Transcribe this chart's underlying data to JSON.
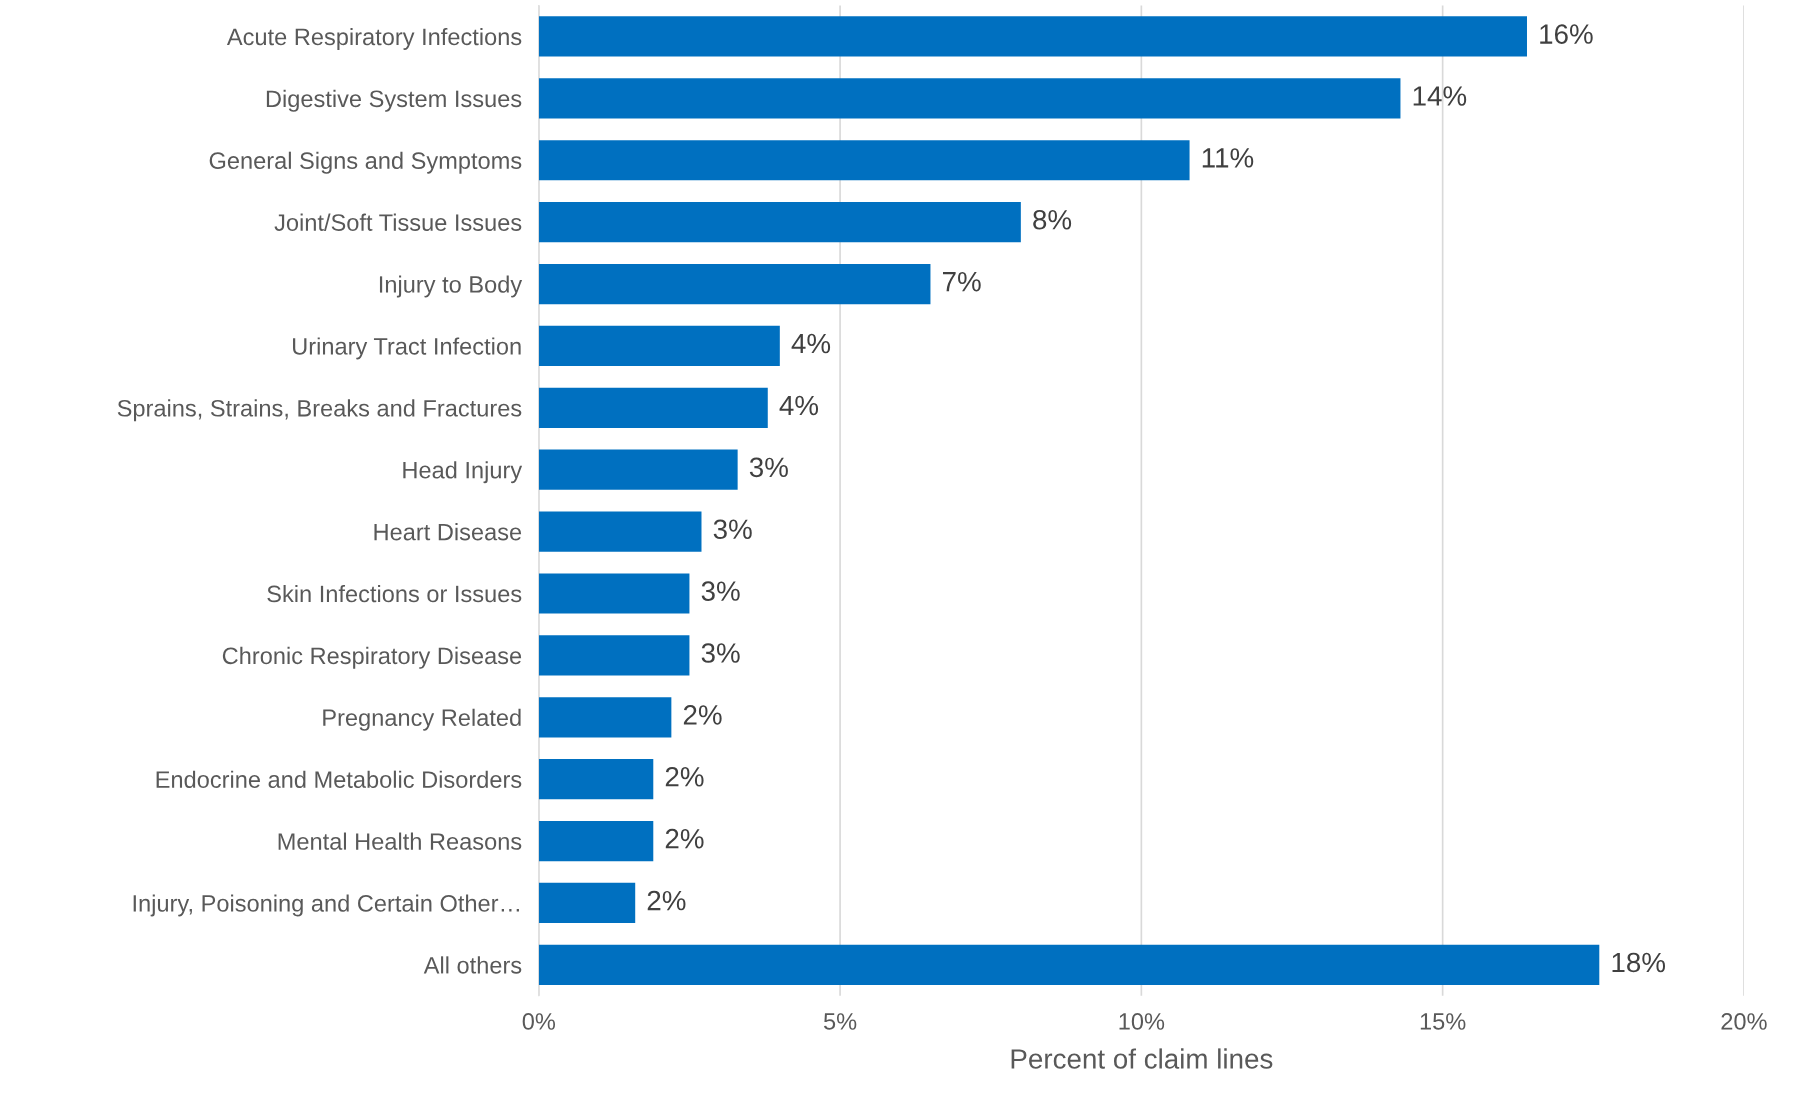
{
  "chart_data": {
    "type": "bar",
    "orientation": "horizontal",
    "xlabel": "Percent of claim lines",
    "categories": [
      "Acute Respiratory Infections",
      "Digestive System Issues",
      "General Signs and Symptoms",
      "Joint/Soft Tissue Issues",
      "Injury to Body",
      "Urinary Tract Infection",
      "Sprains, Strains, Breaks and Fractures",
      "Head Injury",
      "Heart Disease",
      "Skin Infections or Issues",
      "Chronic Respiratory Disease",
      "Pregnancy Related",
      "Endocrine and Metabolic Disorders",
      "Mental Health Reasons",
      "Injury, Poisoning and Certain Other…",
      "All others"
    ],
    "values": [
      16.4,
      14.3,
      10.8,
      8.0,
      6.5,
      4.0,
      3.8,
      3.3,
      2.7,
      2.5,
      2.5,
      2.2,
      1.9,
      1.9,
      1.6,
      17.6
    ],
    "value_labels": [
      "16%",
      "14%",
      "11%",
      "8%",
      "7%",
      "4%",
      "4%",
      "3%",
      "3%",
      "3%",
      "3%",
      "2%",
      "2%",
      "2%",
      "2%",
      "18%"
    ],
    "color": "#0070c0",
    "xlim": [
      0,
      20
    ],
    "xticks": [
      {
        "value": 0,
        "label": "0%"
      },
      {
        "value": 5,
        "label": "5%"
      },
      {
        "value": 10,
        "label": "10%"
      },
      {
        "value": 15,
        "label": "15%"
      },
      {
        "value": 20,
        "label": "20%"
      }
    ],
    "grid": "x"
  }
}
